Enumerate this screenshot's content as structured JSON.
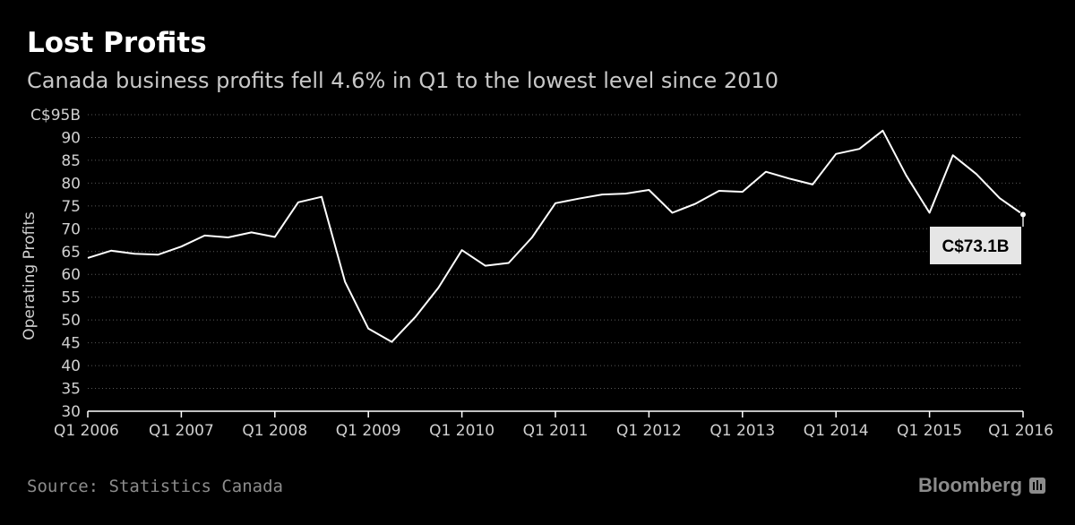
{
  "title": "Lost Profits",
  "subtitle": "Canada business profits fell 4.6% in Q1 to the lowest level since 2010",
  "source": "Source: Statistics Canada",
  "brand": "Bloomberg",
  "brand_icon": "bloomberg-terminal-icon",
  "colors": {
    "background": "#000000",
    "line": "#ffffff",
    "grid": "#5a5a5a",
    "axis_text": "#d0d0d0",
    "callout_bg": "#e6e6e6",
    "callout_text": "#000000"
  },
  "chart_data": {
    "type": "line",
    "ylabel": "Operating Profits",
    "xlabel": "",
    "ylim": [
      30,
      95
    ],
    "y_ticks": [
      30,
      35,
      40,
      45,
      50,
      55,
      60,
      65,
      70,
      75,
      80,
      85,
      90,
      95
    ],
    "y_tick_labels": [
      "30",
      "35",
      "40",
      "45",
      "50",
      "55",
      "60",
      "65",
      "70",
      "75",
      "80",
      "85",
      "90",
      "C$95B"
    ],
    "x_ticks": [
      "Q1 2006",
      "Q1 2007",
      "Q1 2008",
      "Q1 2009",
      "Q1 2010",
      "Q1 2011",
      "Q1 2012",
      "Q1 2013",
      "Q1 2014",
      "Q1 2015",
      "Q1 2016"
    ],
    "grid": "horizontal dotted",
    "legend": "none",
    "x": [
      "Q1 2006",
      "Q2 2006",
      "Q3 2006",
      "Q4 2006",
      "Q1 2007",
      "Q2 2007",
      "Q3 2007",
      "Q4 2007",
      "Q1 2008",
      "Q2 2008",
      "Q3 2008",
      "Q4 2008",
      "Q1 2009",
      "Q2 2009",
      "Q3 2009",
      "Q4 2009",
      "Q1 2010",
      "Q2 2010",
      "Q3 2010",
      "Q4 2010",
      "Q1 2011",
      "Q2 2011",
      "Q3 2011",
      "Q4 2011",
      "Q1 2012",
      "Q2 2012",
      "Q3 2012",
      "Q4 2012",
      "Q1 2013",
      "Q2 2013",
      "Q3 2013",
      "Q4 2013",
      "Q1 2014",
      "Q2 2014",
      "Q3 2014",
      "Q4 2014",
      "Q1 2015",
      "Q2 2015",
      "Q3 2015",
      "Q4 2015",
      "Q1 2016"
    ],
    "series": [
      {
        "values": [
          63.6,
          65.2,
          64.5,
          64.3,
          66.1,
          68.5,
          68.1,
          69.2,
          68.2,
          75.8,
          77.0,
          58.4,
          48.1,
          45.2,
          50.6,
          57.1,
          65.3,
          61.9,
          62.5,
          68.1,
          75.6,
          76.6,
          77.5,
          77.7,
          78.5,
          73.5,
          75.5,
          78.3,
          78.1,
          82.5,
          81.0,
          79.7,
          86.4,
          87.5,
          91.5,
          81.7,
          73.5,
          86.1,
          82.0,
          76.7,
          73.1
        ]
      }
    ],
    "annotation": "C$73.1B"
  }
}
